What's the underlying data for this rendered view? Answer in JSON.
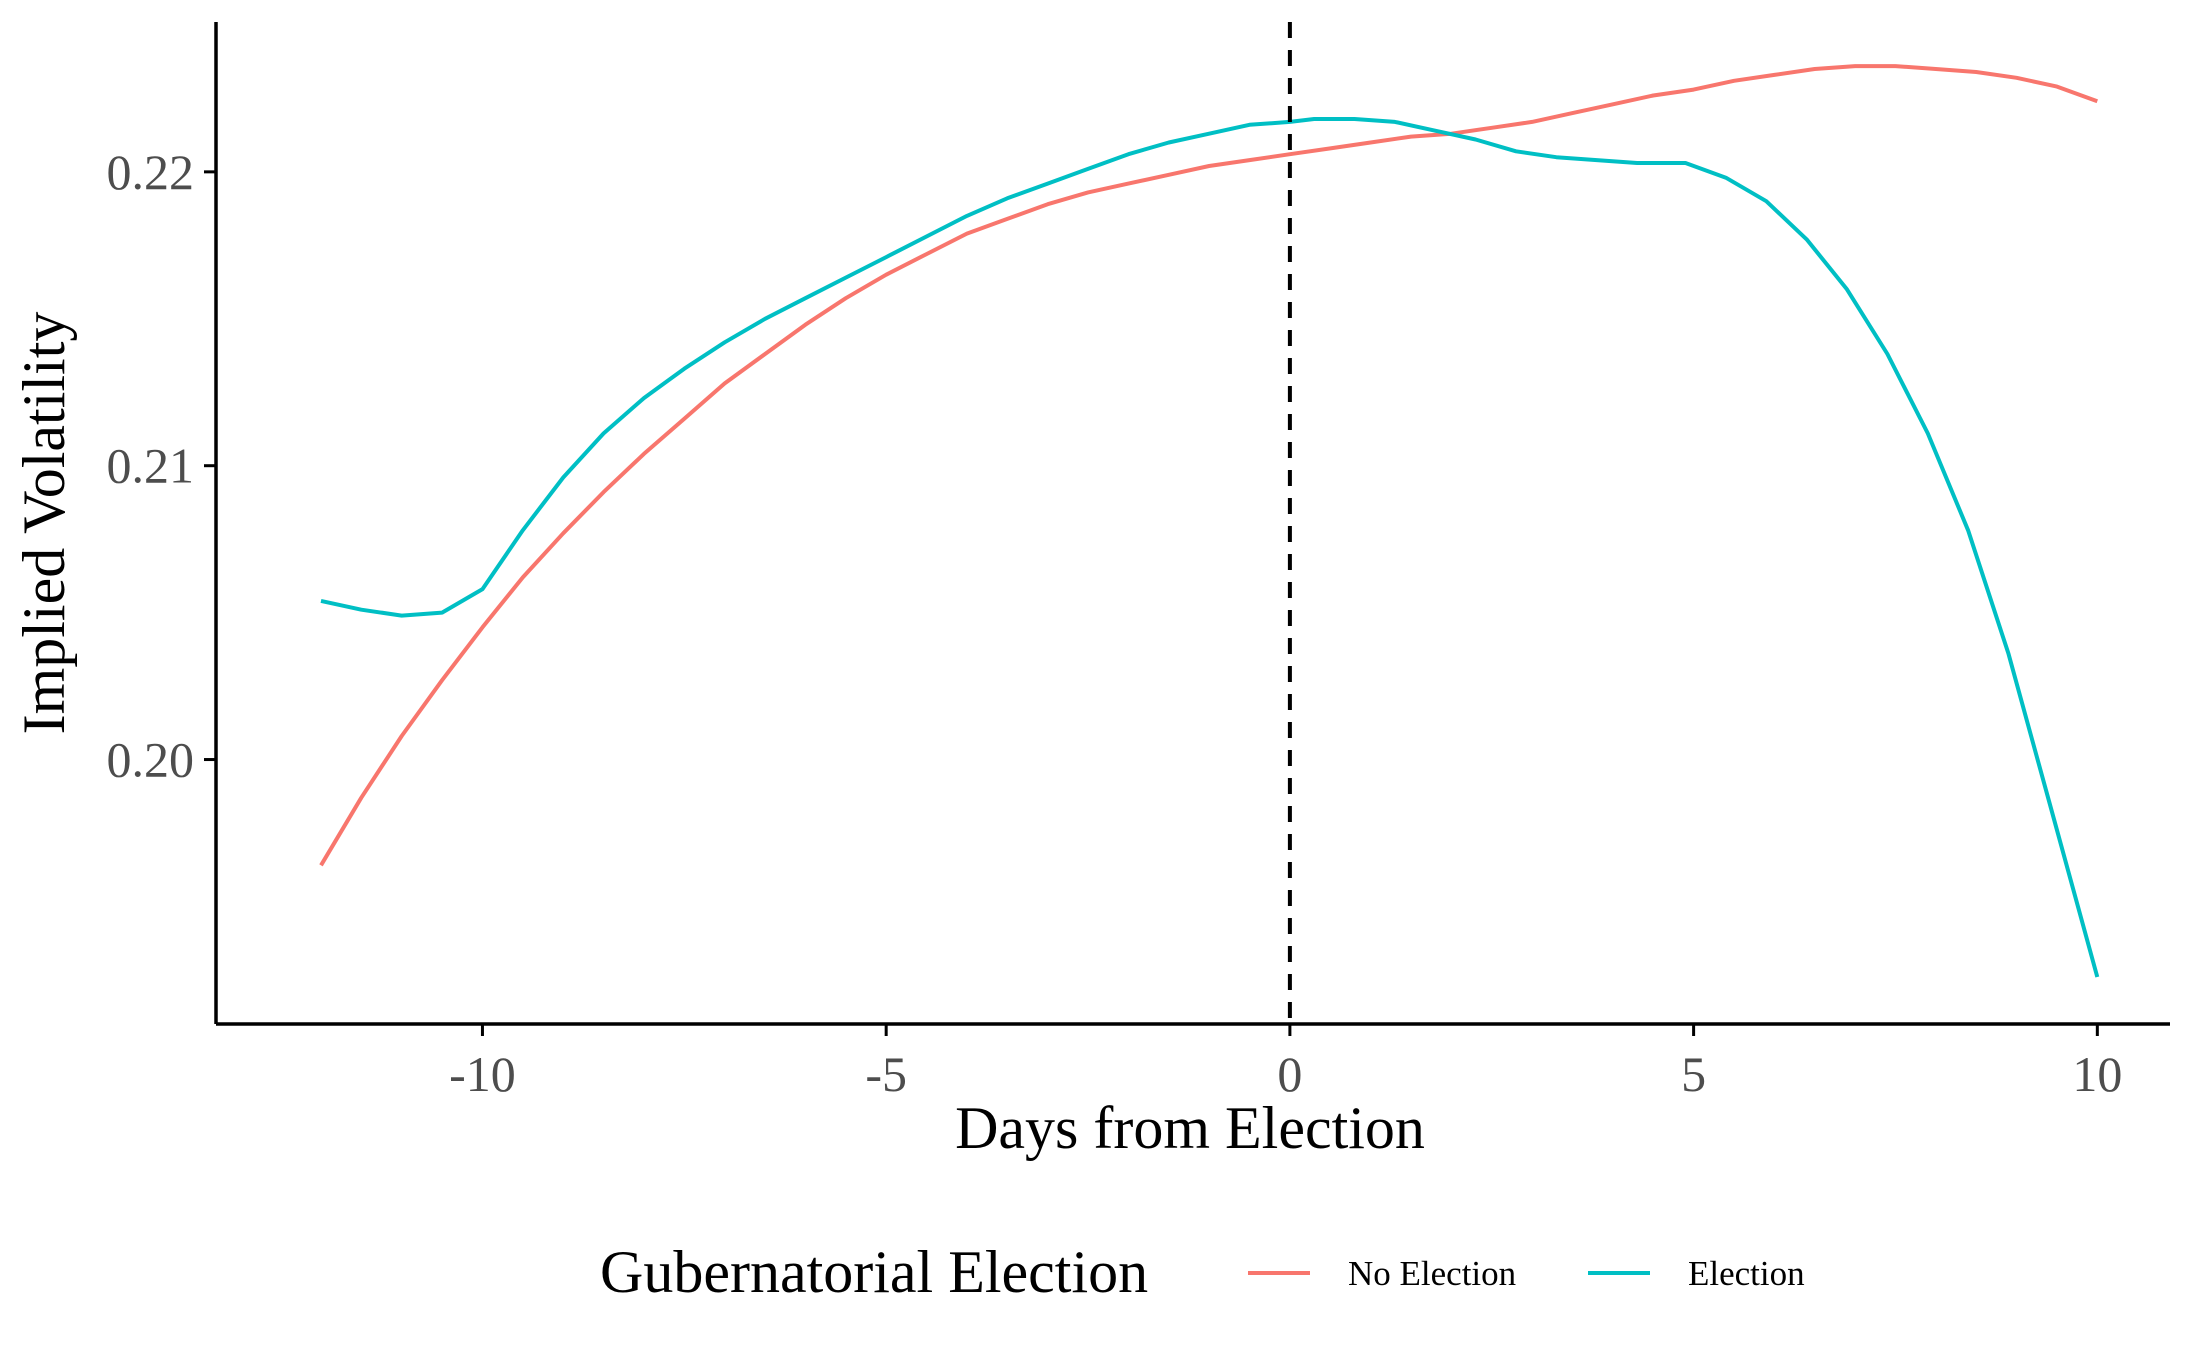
{
  "chart_data": {
    "type": "line",
    "title": "",
    "xlabel": "Days from Election",
    "ylabel": "Implied Volatility",
    "xlim": [
      -13.3,
      10.9
    ],
    "ylim": [
      0.191,
      0.2251
    ],
    "x_ticks": [
      {
        "value": -10,
        "label": "-10"
      },
      {
        "value": -5,
        "label": "-5"
      },
      {
        "value": 0,
        "label": "0"
      },
      {
        "value": 5,
        "label": "5"
      },
      {
        "value": 10,
        "label": "10"
      }
    ],
    "y_ticks": [
      {
        "value": 0.2,
        "label": "0.20"
      },
      {
        "value": 0.21,
        "label": "0.21"
      },
      {
        "value": 0.22,
        "label": "0.22"
      }
    ],
    "grid": false,
    "vline": {
      "x": 0,
      "style": "dashed",
      "color": "#000000"
    },
    "legend": {
      "title": "Gubernatorial Election",
      "placement": "bottom"
    },
    "series": [
      {
        "name": "No Election",
        "color": "#F8766D",
        "x": [
          -12,
          -11.5,
          -11,
          -10.5,
          -10,
          -9.5,
          -9,
          -8.5,
          -8,
          -7.5,
          -7,
          -6.5,
          -6,
          -5.5,
          -5,
          -4.5,
          -4,
          -3.5,
          -3,
          -2.5,
          -2,
          -1.5,
          -1,
          -0.5,
          0,
          0.5,
          1,
          1.5,
          2,
          2.5,
          3,
          3.5,
          4,
          4.5,
          5,
          5.5,
          6,
          6.5,
          7,
          7.5,
          8,
          8.5,
          9,
          9.5,
          10
        ],
        "values": [
          0.1964,
          0.1987,
          0.2008,
          0.2027,
          0.2045,
          0.2062,
          0.2077,
          0.2091,
          0.2104,
          0.2116,
          0.2128,
          0.2138,
          0.2148,
          0.2157,
          0.2165,
          0.2172,
          0.2179,
          0.2184,
          0.2189,
          0.2193,
          0.2196,
          0.2199,
          0.2202,
          0.2204,
          0.2206,
          0.2208,
          0.221,
          0.2212,
          0.2213,
          0.2215,
          0.2217,
          0.222,
          0.2223,
          0.2226,
          0.2228,
          0.2231,
          0.2233,
          0.2235,
          0.2236,
          0.2236,
          0.2235,
          0.2234,
          0.2232,
          0.2229,
          0.2224
        ]
      },
      {
        "name": "Election",
        "color": "#00BFC4",
        "x": [
          -12,
          -11.5,
          -11,
          -10.5,
          -10,
          -9.5,
          -9,
          -8.5,
          -8,
          -7.5,
          -7,
          -6.5,
          -6,
          -5.5,
          -5,
          -4.5,
          -4,
          -3.5,
          -3,
          -2.5,
          -2,
          -1.5,
          -1,
          -0.5,
          0,
          0.3,
          0.8,
          1.3,
          1.8,
          2.3,
          2.8,
          3.3,
          3.8,
          4.3,
          4.9,
          5.4,
          5.9,
          6.4,
          6.9,
          7.4,
          7.9,
          8.4,
          8.9,
          9.4,
          10
        ],
        "values": [
          0.2054,
          0.2051,
          0.2049,
          0.205,
          0.2058,
          0.2078,
          0.2096,
          0.2111,
          0.2123,
          0.2133,
          0.2142,
          0.215,
          0.2157,
          0.2164,
          0.2171,
          0.2178,
          0.2185,
          0.2191,
          0.2196,
          0.2201,
          0.2206,
          0.221,
          0.2213,
          0.2216,
          0.2217,
          0.2218,
          0.2218,
          0.2217,
          0.2214,
          0.2211,
          0.2207,
          0.2205,
          0.2204,
          0.2203,
          0.2203,
          0.2198,
          0.219,
          0.2177,
          0.216,
          0.2138,
          0.2111,
          0.2078,
          0.2036,
          0.1986,
          0.1926
        ]
      }
    ]
  }
}
